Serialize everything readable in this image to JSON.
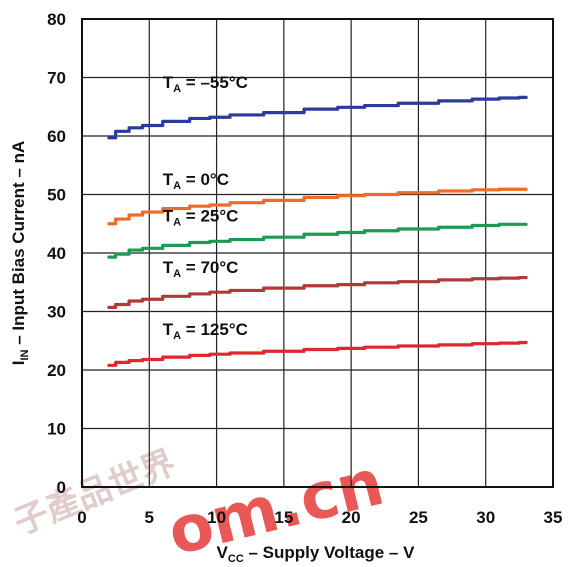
{
  "chart_data": {
    "type": "line",
    "title": "",
    "xlabel": {
      "main": "V",
      "sub": "CC",
      "rest": " – Supply Voltage – V"
    },
    "ylabel": {
      "main": "I",
      "sub": "IN",
      "rest": " – Input Bias Current – nA"
    },
    "xlim": [
      0,
      35
    ],
    "ylim": [
      0,
      80
    ],
    "xticks": [
      0,
      5,
      10,
      15,
      20,
      25,
      30,
      35
    ],
    "yticks": [
      0,
      10,
      20,
      30,
      40,
      50,
      60,
      70,
      80
    ],
    "grid": true,
    "x": [
      2,
      3,
      4,
      5,
      7,
      9,
      10,
      12,
      15,
      18,
      20,
      22,
      25,
      28,
      30,
      32,
      33
    ],
    "series": [
      {
        "name": "T_A = –55°C",
        "label": {
          "main": "T",
          "sub": "A",
          "rest": " = –55°C"
        },
        "color": "#2a3b9c",
        "values": [
          59.7,
          60.8,
          61.4,
          61.8,
          62.5,
          63.0,
          63.2,
          63.6,
          64.0,
          64.6,
          64.9,
          65.2,
          65.6,
          66.0,
          66.3,
          66.5,
          66.6
        ]
      },
      {
        "name": "T_A = 0°C",
        "label": {
          "main": "T",
          "sub": "A",
          "rest": " = 0°C"
        },
        "color": "#ee6a2a",
        "values": [
          45.0,
          45.8,
          46.5,
          47.0,
          47.6,
          48.0,
          48.2,
          48.6,
          49.0,
          49.5,
          49.8,
          50.0,
          50.3,
          50.6,
          50.8,
          50.9,
          50.9
        ]
      },
      {
        "name": "T_A = 25°C",
        "label": {
          "main": "T",
          "sub": "A",
          "rest": " = 25°C"
        },
        "color": "#1f9a52",
        "values": [
          39.3,
          39.8,
          40.5,
          40.8,
          41.3,
          41.8,
          42.0,
          42.3,
          42.7,
          43.2,
          43.5,
          43.8,
          44.1,
          44.4,
          44.7,
          44.9,
          44.9
        ]
      },
      {
        "name": "T_A = 70°C",
        "label": {
          "main": "T",
          "sub": "A",
          "rest": " = 70°C"
        },
        "color": "#b03a3a",
        "values": [
          30.7,
          31.2,
          31.8,
          32.1,
          32.6,
          33.0,
          33.3,
          33.6,
          34.0,
          34.4,
          34.6,
          34.9,
          35.1,
          35.4,
          35.6,
          35.7,
          35.8
        ]
      },
      {
        "name": "T_A = 125°C",
        "label": {
          "main": "T",
          "sub": "A",
          "rest": " = 125°C"
        },
        "color": "#e0262f",
        "values": [
          20.8,
          21.3,
          21.6,
          21.8,
          22.2,
          22.5,
          22.7,
          22.9,
          23.2,
          23.5,
          23.7,
          23.9,
          24.1,
          24.3,
          24.5,
          24.6,
          24.7
        ]
      }
    ]
  },
  "watermark": {
    "text": "om.cn",
    "chars": "子產品世界"
  }
}
